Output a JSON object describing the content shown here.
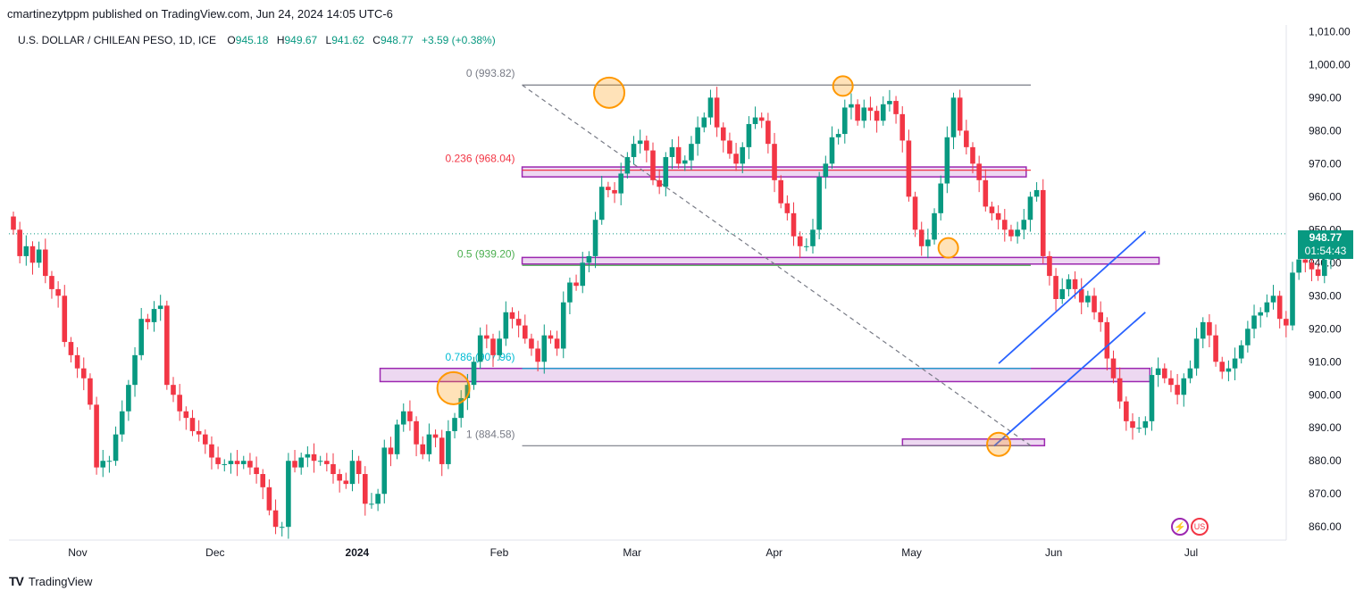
{
  "header": {
    "publisher": "cmartinezytppm published on TradingView.com, Jun 24, 2024 14:05 UTC-6"
  },
  "symbol": {
    "name": "U.S. DOLLAR / CHILEAN PESO, 1D, ICE",
    "open_label": "O",
    "open": "945.18",
    "high_label": "H",
    "high": "949.67",
    "low_label": "L",
    "low": "941.62",
    "close_label": "C",
    "close": "948.77",
    "change": "+3.59 (+0.38%)"
  },
  "last_price": {
    "price": "948.77",
    "countdown": "01:54:43"
  },
  "footer": {
    "brand": "TradingView",
    "logo": "TV"
  },
  "badges": {
    "lightning-icon": "⚡",
    "flag-icon": "US"
  },
  "colors": {
    "up": "#089981",
    "down": "#f23645",
    "fib_zero": "#787b86",
    "fib_236": "#f23645",
    "fib_05": "#4caf50",
    "fib_786": "#00bcd4",
    "zone": "#9c27b0",
    "channel": "#2962ff",
    "marker": "#ff9800"
  },
  "chart_data": {
    "type": "candlestick",
    "y_axis": {
      "min": 856,
      "max": 1012,
      "ticks": [
        "1,010.00",
        "1,000.00",
        "990.00",
        "980.00",
        "970.00",
        "960.00",
        "950.00",
        "940.00",
        "930.00",
        "920.00",
        "910.00",
        "900.00",
        "890.00",
        "880.00",
        "870.00",
        "860.00"
      ]
    },
    "x_axis": {
      "ticks": [
        "Nov",
        "Dec",
        "2024",
        "Feb",
        "Mar",
        "Apr",
        "May",
        "Jun",
        "Jul"
      ]
    },
    "fibonacci": [
      {
        "label": "0 (993.82)",
        "level": 993.82
      },
      {
        "label": "0.236 (968.04)",
        "level": 968.04
      },
      {
        "label": "0.5 (939.20)",
        "level": 939.2
      },
      {
        "label": "0.786 (907.96)",
        "level": 907.96
      },
      {
        "label": "1 (884.58)",
        "level": 884.58
      }
    ],
    "start_date": "2023-10-17",
    "closes": [
      950,
      942,
      945,
      940,
      944,
      936,
      932,
      930,
      916,
      912,
      908,
      905,
      897,
      878,
      880,
      880,
      888,
      895,
      903,
      912,
      923,
      922,
      926,
      927,
      903,
      900,
      895,
      893,
      889,
      888,
      885,
      881,
      879,
      879,
      880,
      879,
      880,
      878,
      876,
      872,
      865,
      860,
      860,
      880,
      878,
      881,
      882,
      880,
      880,
      879,
      876,
      874,
      873,
      880,
      876,
      867,
      867,
      870,
      884,
      882,
      891,
      895,
      892,
      885,
      882,
      888,
      887,
      879,
      889,
      893,
      899,
      903,
      910,
      918,
      917,
      912,
      917,
      925,
      923,
      921,
      917,
      914,
      910,
      918,
      917,
      914,
      928,
      934,
      933,
      940,
      942,
      953,
      963,
      962,
      961,
      967,
      972,
      976,
      977,
      974,
      965,
      963,
      972,
      975,
      970,
      971,
      976,
      981,
      984,
      990,
      981,
      977,
      973,
      970,
      975,
      982,
      984,
      983,
      976,
      965,
      958,
      955,
      948,
      945,
      945,
      950,
      966,
      970,
      978,
      979,
      987,
      988,
      983,
      987,
      986,
      983,
      988,
      989,
      985,
      977,
      960,
      950,
      945,
      947,
      955,
      964,
      978,
      990,
      980,
      975,
      970,
      965,
      957,
      955,
      953,
      950,
      948,
      950,
      953,
      960,
      962,
      942,
      936,
      929,
      932,
      935,
      932,
      928,
      930,
      925,
      922,
      911,
      905,
      898,
      892,
      890,
      890,
      892,
      906,
      908,
      905,
      903,
      900,
      905,
      908,
      917,
      922,
      918,
      910,
      907,
      908,
      911,
      915,
      920,
      924,
      925,
      928,
      930,
      923,
      921,
      937,
      941,
      940,
      938,
      936,
      941,
      945,
      948.77
    ]
  }
}
